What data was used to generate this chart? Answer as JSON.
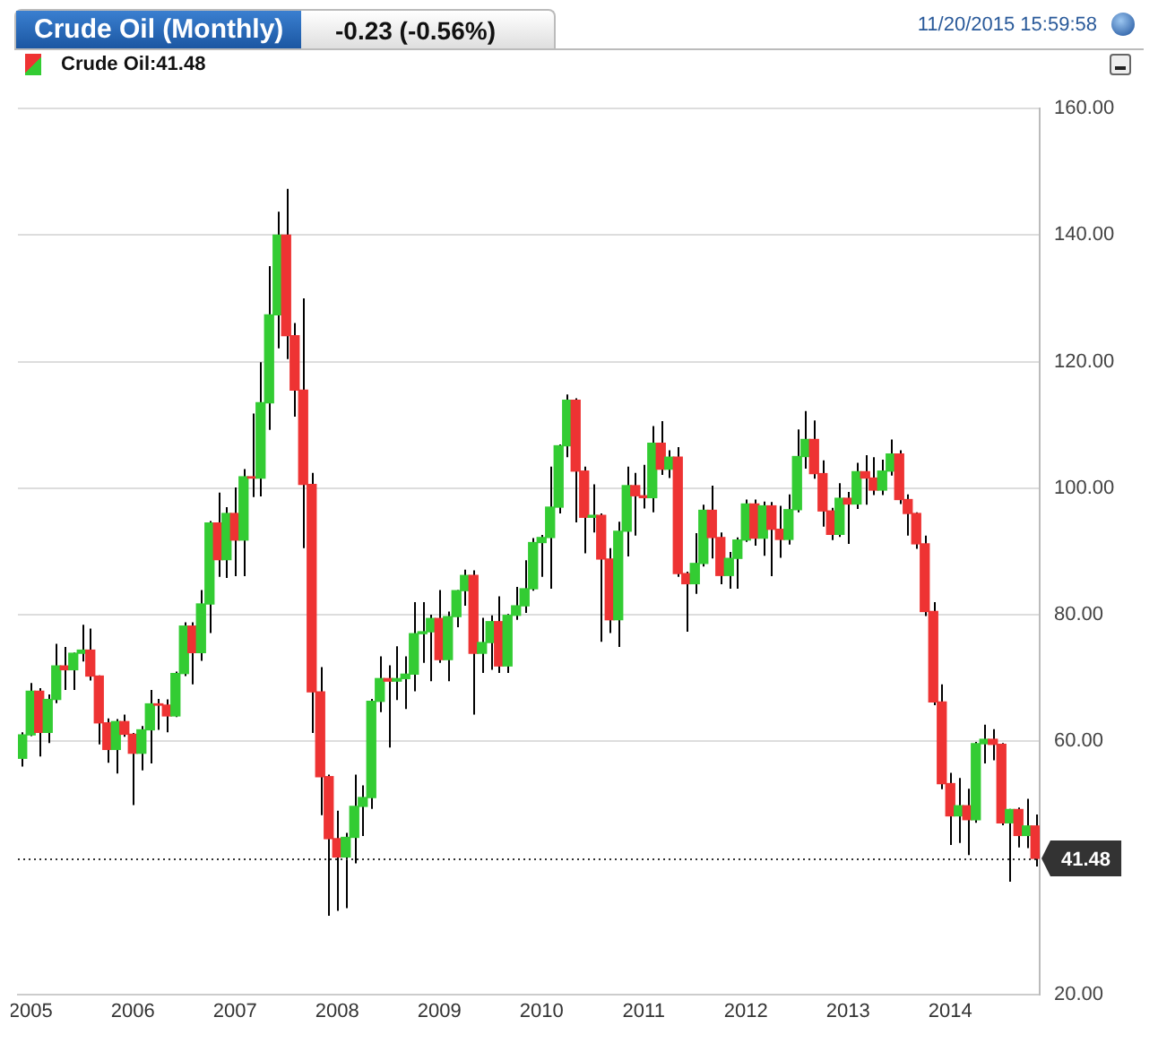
{
  "chart_data": {
    "type": "candlestick",
    "title": "Crude Oil (Monthly)",
    "annotations": [
      "-0.23 (-0.56%)",
      "11/20/2015 15:59:58",
      "Crude Oil:41.48"
    ],
    "categories": [
      null,
      "2005",
      null,
      null,
      null,
      null,
      null,
      null,
      null,
      null,
      null,
      null,
      null,
      "2006",
      null,
      null,
      null,
      null,
      null,
      null,
      null,
      null,
      null,
      null,
      null,
      "2007",
      null,
      null,
      null,
      null,
      null,
      null,
      null,
      null,
      null,
      null,
      null,
      "2008",
      null,
      null,
      null,
      null,
      null,
      null,
      null,
      null,
      null,
      null,
      null,
      "2009",
      null,
      null,
      null,
      null,
      null,
      null,
      null,
      null,
      null,
      null,
      null,
      "2010",
      null,
      null,
      null,
      null,
      null,
      null,
      null,
      null,
      null,
      null,
      null,
      "2011",
      null,
      null,
      null,
      null,
      null,
      null,
      null,
      null,
      null,
      null,
      null,
      "2012",
      null,
      null,
      null,
      null,
      null,
      null,
      null,
      null,
      null,
      null,
      null,
      "2013",
      null,
      null,
      null,
      null,
      null,
      null,
      null,
      null,
      null,
      null,
      null,
      "2014",
      null,
      null,
      null,
      null,
      null,
      null,
      null,
      null,
      null,
      null
    ],
    "ohlc": [
      [
        57.3,
        61.4,
        56.0,
        61.0
      ],
      [
        61.0,
        69.2,
        60.8,
        67.9
      ],
      [
        67.9,
        68.4,
        57.6,
        61.4
      ],
      [
        61.4,
        67.4,
        59.7,
        66.6
      ],
      [
        66.6,
        75.4,
        66.0,
        71.9
      ],
      [
        71.9,
        74.9,
        68.1,
        71.3
      ],
      [
        71.3,
        74.0,
        68.1,
        73.9
      ],
      [
        73.9,
        78.4,
        72.6,
        74.4
      ],
      [
        74.4,
        77.8,
        69.6,
        70.3
      ],
      [
        70.3,
        70.4,
        59.5,
        62.9
      ],
      [
        62.9,
        63.6,
        56.6,
        58.7
      ],
      [
        58.7,
        63.5,
        54.9,
        63.1
      ],
      [
        63.1,
        64.2,
        60.7,
        61.1
      ],
      [
        61.1,
        61.3,
        49.9,
        58.1
      ],
      [
        58.1,
        62.4,
        55.4,
        61.8
      ],
      [
        61.8,
        68.1,
        56.5,
        65.9
      ],
      [
        65.9,
        66.7,
        61.8,
        65.7
      ],
      [
        65.7,
        66.6,
        61.4,
        64.0
      ],
      [
        64.0,
        71.0,
        63.8,
        70.7
      ],
      [
        70.7,
        78.8,
        70.3,
        78.2
      ],
      [
        78.2,
        78.8,
        69.0,
        74.0
      ],
      [
        74.0,
        83.9,
        72.7,
        81.7
      ],
      [
        81.7,
        94.8,
        77.1,
        94.5
      ],
      [
        94.5,
        99.3,
        86.0,
        88.7
      ],
      [
        88.7,
        97.0,
        85.8,
        96.0
      ],
      [
        96.0,
        100.1,
        86.1,
        91.8
      ],
      [
        91.8,
        103.0,
        86.1,
        101.8
      ],
      [
        101.8,
        111.8,
        98.6,
        101.6
      ],
      [
        101.6,
        119.9,
        98.7,
        113.5
      ],
      [
        113.5,
        135.1,
        109.2,
        127.4
      ],
      [
        127.4,
        143.7,
        122.1,
        140.0
      ],
      [
        140.0,
        147.3,
        120.4,
        124.1
      ],
      [
        124.1,
        126.1,
        111.3,
        115.5
      ],
      [
        115.5,
        130.0,
        90.5,
        100.6
      ],
      [
        100.6,
        102.4,
        61.3,
        67.8
      ],
      [
        67.8,
        71.7,
        48.3,
        54.4
      ],
      [
        54.4,
        54.7,
        32.4,
        44.6
      ],
      [
        44.6,
        49.0,
        33.2,
        41.7
      ],
      [
        41.7,
        45.5,
        33.6,
        44.8
      ],
      [
        44.8,
        54.7,
        40.7,
        49.7
      ],
      [
        49.7,
        53.0,
        45.0,
        51.1
      ],
      [
        51.1,
        66.7,
        49.3,
        66.3
      ],
      [
        66.3,
        73.4,
        64.6,
        69.9
      ],
      [
        69.9,
        72.0,
        59.0,
        69.5
      ],
      [
        69.5,
        75.0,
        66.5,
        69.9
      ],
      [
        69.9,
        73.4,
        65.1,
        70.6
      ],
      [
        70.6,
        82.0,
        67.9,
        77.0
      ],
      [
        77.0,
        82.0,
        72.4,
        77.3
      ],
      [
        77.3,
        80.0,
        69.5,
        79.4
      ],
      [
        79.4,
        83.9,
        72.4,
        72.9
      ],
      [
        72.9,
        80.5,
        69.5,
        79.7
      ],
      [
        79.7,
        83.9,
        78.0,
        83.8
      ],
      [
        83.8,
        87.1,
        81.4,
        86.2
      ],
      [
        86.2,
        87.0,
        64.2,
        73.9
      ],
      [
        73.9,
        79.5,
        70.8,
        75.6
      ],
      [
        75.6,
        79.9,
        71.3,
        78.9
      ],
      [
        78.9,
        82.9,
        70.8,
        71.9
      ],
      [
        71.9,
        80.1,
        70.8,
        79.9
      ],
      [
        79.9,
        84.4,
        79.2,
        81.4
      ],
      [
        81.4,
        88.6,
        80.3,
        84.1
      ],
      [
        84.1,
        92.1,
        83.8,
        91.4
      ],
      [
        91.4,
        92.6,
        86.0,
        92.2
      ],
      [
        92.2,
        103.4,
        84.1,
        97.0
      ],
      [
        97.0,
        106.9,
        96.0,
        106.7
      ],
      [
        106.7,
        114.8,
        104.9,
        113.9
      ],
      [
        113.9,
        114.2,
        94.6,
        102.7
      ],
      [
        102.7,
        103.4,
        89.7,
        95.4
      ],
      [
        95.4,
        100.6,
        93.0,
        95.7
      ],
      [
        95.7,
        96.0,
        75.7,
        88.8
      ],
      [
        88.8,
        90.5,
        77.1,
        79.2
      ],
      [
        79.2,
        94.7,
        74.9,
        93.2
      ],
      [
        93.2,
        103.4,
        89.2,
        100.4
      ],
      [
        100.4,
        102.4,
        92.5,
        98.8
      ],
      [
        98.8,
        103.7,
        96.8,
        98.5
      ],
      [
        98.5,
        109.8,
        96.2,
        107.1
      ],
      [
        107.1,
        110.6,
        102.1,
        103.0
      ],
      [
        103.0,
        106.0,
        101.6,
        104.9
      ],
      [
        104.9,
        106.5,
        86.0,
        86.5
      ],
      [
        86.5,
        86.8,
        77.3,
        84.9
      ],
      [
        84.9,
        92.9,
        83.3,
        88.1
      ],
      [
        88.1,
        97.4,
        87.6,
        96.5
      ],
      [
        96.5,
        100.4,
        88.9,
        92.2
      ],
      [
        92.2,
        93.0,
        84.8,
        86.2
      ],
      [
        86.2,
        89.9,
        84.1,
        88.9
      ],
      [
        88.9,
        92.2,
        84.1,
        91.8
      ],
      [
        91.8,
        98.2,
        91.5,
        97.5
      ],
      [
        97.5,
        98.2,
        90.9,
        92.1
      ],
      [
        92.1,
        97.9,
        89.3,
        97.2
      ],
      [
        97.2,
        97.8,
        86.1,
        93.5
      ],
      [
        93.5,
        97.2,
        89.0,
        91.9
      ],
      [
        91.9,
        99.0,
        91.1,
        96.6
      ],
      [
        96.6,
        109.3,
        96.2,
        105.0
      ],
      [
        105.0,
        112.2,
        103.1,
        107.7
      ],
      [
        107.7,
        110.7,
        101.5,
        102.3
      ],
      [
        102.3,
        104.4,
        93.9,
        96.4
      ],
      [
        96.4,
        96.9,
        91.8,
        92.7
      ],
      [
        92.7,
        100.8,
        92.3,
        98.4
      ],
      [
        98.4,
        99.4,
        91.2,
        97.5
      ],
      [
        97.5,
        104.0,
        96.7,
        102.6
      ],
      [
        102.6,
        105.2,
        97.4,
        101.6
      ],
      [
        101.6,
        104.9,
        98.9,
        99.7
      ],
      [
        99.7,
        104.5,
        98.9,
        102.7
      ],
      [
        102.7,
        107.7,
        102.0,
        105.4
      ],
      [
        105.4,
        106.0,
        97.5,
        98.2
      ],
      [
        98.2,
        99.0,
        92.5,
        96.0
      ],
      [
        96.0,
        96.2,
        90.4,
        91.2
      ],
      [
        91.2,
        92.5,
        79.8,
        80.5
      ],
      [
        80.5,
        82.0,
        65.7,
        66.2
      ],
      [
        66.2,
        69.0,
        52.4,
        53.3
      ],
      [
        53.3,
        55.0,
        43.6,
        48.2
      ],
      [
        48.2,
        54.2,
        43.9,
        49.8
      ],
      [
        49.8,
        52.5,
        42.0,
        47.6
      ],
      [
        47.6,
        59.9,
        47.1,
        59.6
      ],
      [
        59.6,
        62.6,
        56.5,
        60.3
      ],
      [
        60.3,
        61.9,
        57.0,
        59.5
      ],
      [
        59.5,
        59.7,
        46.7,
        47.1
      ],
      [
        47.1,
        49.3,
        37.8,
        49.2
      ],
      [
        49.2,
        49.5,
        43.2,
        45.1
      ],
      [
        45.1,
        50.9,
        43.1,
        46.6
      ],
      [
        46.6,
        48.4,
        40.2,
        41.48
      ]
    ],
    "colors": [
      "#33cc33",
      "#33cc33",
      "#ee3333",
      "#33cc33",
      "#33cc33",
      "#ee3333",
      "#33cc33",
      "#33cc33",
      "#ee3333",
      "#ee3333",
      "#ee3333",
      "#33cc33",
      "#ee3333",
      "#ee3333",
      "#33cc33",
      "#33cc33",
      "#ee3333",
      "#ee3333",
      "#33cc33",
      "#33cc33",
      "#ee3333",
      "#33cc33",
      "#33cc33",
      "#ee3333",
      "#33cc33",
      "#ee3333",
      "#33cc33",
      "#ee3333",
      "#33cc33",
      "#33cc33",
      "#33cc33",
      "#ee3333",
      "#ee3333",
      "#ee3333",
      "#ee3333",
      "#ee3333",
      "#ee3333",
      "#ee3333",
      "#33cc33",
      "#33cc33",
      "#33cc33",
      "#33cc33",
      "#33cc33",
      "#ee3333",
      "#33cc33",
      "#33cc33",
      "#33cc33",
      "#33cc33",
      "#33cc33",
      "#ee3333",
      "#33cc33",
      "#33cc33",
      "#33cc33",
      "#ee3333",
      "#33cc33",
      "#33cc33",
      "#ee3333",
      "#33cc33",
      "#33cc33",
      "#33cc33",
      "#33cc33",
      "#33cc33",
      "#33cc33",
      "#33cc33",
      "#33cc33",
      "#ee3333",
      "#ee3333",
      "#33cc33",
      "#ee3333",
      "#ee3333",
      "#33cc33",
      "#33cc33",
      "#ee3333",
      "#ee3333",
      "#33cc33",
      "#ee3333",
      "#33cc33",
      "#ee3333",
      "#ee3333",
      "#33cc33",
      "#33cc33",
      "#ee3333",
      "#ee3333",
      "#33cc33",
      "#33cc33",
      "#33cc33",
      "#ee3333",
      "#33cc33",
      "#ee3333",
      "#ee3333",
      "#33cc33",
      "#33cc33",
      "#33cc33",
      "#ee3333",
      "#ee3333",
      "#ee3333",
      "#33cc33",
      "#ee3333",
      "#33cc33",
      "#ee3333",
      "#ee3333",
      "#33cc33",
      "#33cc33",
      "#ee3333",
      "#ee3333",
      "#ee3333",
      "#ee3333",
      "#ee3333",
      "#ee3333",
      "#ee3333",
      "#33cc33",
      "#ee3333",
      "#33cc33",
      "#33cc33",
      "#ee3333",
      "#ee3333",
      "#33cc33",
      "#ee3333",
      "#33cc33",
      "#ee3333"
    ],
    "ylim": [
      20,
      160
    ],
    "yticks": [
      {
        "value": 20,
        "label": "20.00"
      },
      {
        "value": 60,
        "label": "60.00"
      },
      {
        "value": 80,
        "label": "80.00"
      },
      {
        "value": 100,
        "label": "100.00"
      },
      {
        "value": 120,
        "label": "120.00"
      },
      {
        "value": 140,
        "label": "140.00"
      },
      {
        "value": 160,
        "label": "160.00"
      }
    ],
    "grid": "y",
    "legend": false,
    "ref_lines": [
      {
        "axis": "y",
        "value": 41.48,
        "label": "41.48",
        "color": "#333333",
        "line_style": "dotted"
      }
    ]
  }
}
